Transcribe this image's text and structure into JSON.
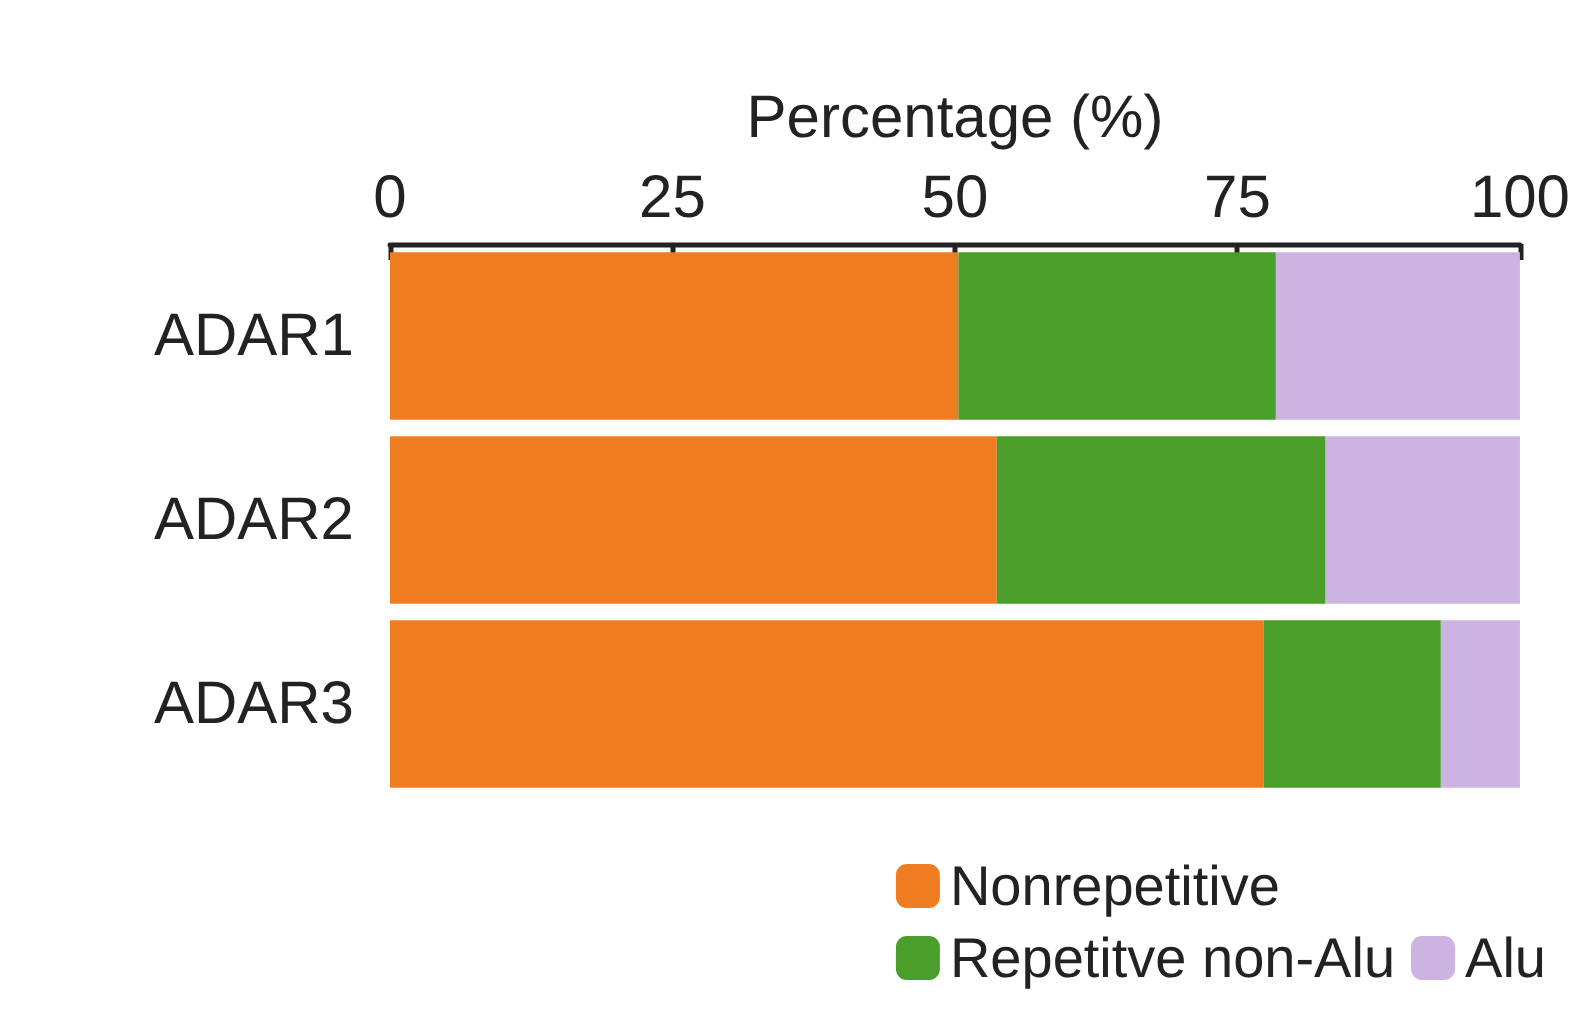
{
  "chart_data": {
    "type": "bar",
    "orientation": "horizontal",
    "stacked": true,
    "xlabel": "Percentage (%)",
    "categories": [
      "ADAR1",
      "ADAR2",
      "ADAR3"
    ],
    "series": [
      {
        "name": "Nonrepetitive",
        "color": "#f07c22",
        "values": [
          50.3,
          53.7,
          77.3
        ]
      },
      {
        "name": "Repetitve non-Alu",
        "color": "#4a9e2a",
        "values": [
          28.1,
          29.1,
          15.7
        ]
      },
      {
        "name": "Alu",
        "color": "#cdb3e2",
        "values": [
          21.6,
          17.2,
          7.0
        ]
      }
    ],
    "xlim": [
      0,
      100
    ],
    "xticks": [
      0,
      25,
      50,
      75,
      100
    ],
    "grid": false,
    "legend": "bottom right"
  }
}
